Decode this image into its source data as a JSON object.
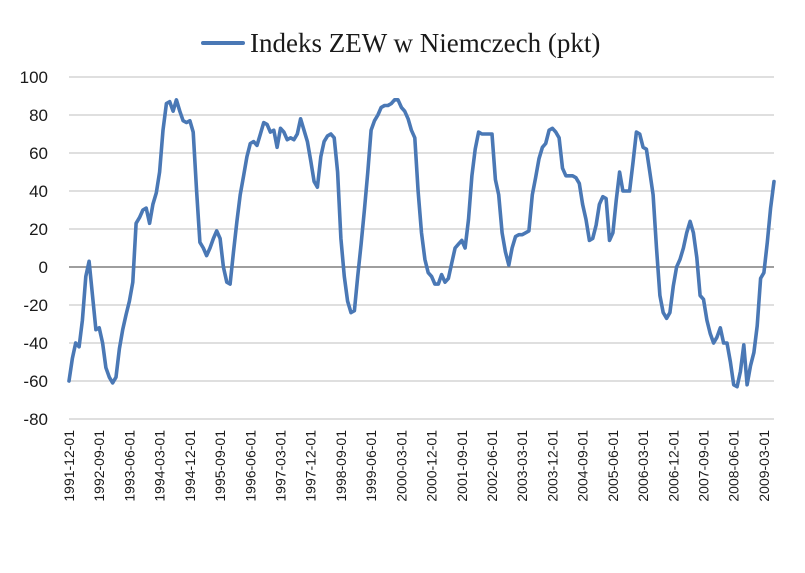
{
  "chart_data": {
    "type": "line",
    "title": "",
    "xlabel": "",
    "ylabel": "",
    "ylim": [
      -80,
      100
    ],
    "yticks": [
      100,
      80,
      60,
      40,
      20,
      0,
      -20,
      -40,
      -60,
      -80
    ],
    "grid": true,
    "legend": {
      "placement": "top-center"
    },
    "x_ticks": [
      "1991-12-01",
      "1992-09-01",
      "1993-06-01",
      "1994-03-01",
      "1994-12-01",
      "1995-09-01",
      "1996-06-01",
      "1997-03-01",
      "1997-12-01",
      "1998-09-01",
      "1999-06-01",
      "2000-03-01",
      "2000-12-01",
      "2001-09-01",
      "2002-06-01",
      "2003-03-01",
      "2003-12-01",
      "2004-09-01",
      "2005-06-01",
      "2006-03-01",
      "2006-12-01",
      "2007-09-01",
      "2008-06-01",
      "2009-03-01"
    ],
    "colors": {
      "series": "#4a78b5",
      "grid": "#bfbfbf",
      "zero_line": "#7f7f7f"
    },
    "series": [
      {
        "name": "Indeks ZEW w Niemczech (pkt)",
        "points": [
          [
            "1991-12-01",
            -60
          ],
          [
            "1992-01-01",
            -48
          ],
          [
            "1992-02-01",
            -40
          ],
          [
            "1992-03-01",
            -42
          ],
          [
            "1992-04-01",
            -28
          ],
          [
            "1992-05-01",
            -5
          ],
          [
            "1992-06-01",
            3
          ],
          [
            "1992-07-01",
            -15
          ],
          [
            "1992-08-01",
            -33
          ],
          [
            "1992-09-01",
            -32
          ],
          [
            "1992-10-01",
            -40
          ],
          [
            "1992-11-01",
            -53
          ],
          [
            "1992-12-01",
            -58
          ],
          [
            "1993-01-01",
            -61
          ],
          [
            "1993-02-01",
            -58
          ],
          [
            "1993-03-01",
            -43
          ],
          [
            "1993-04-01",
            -33
          ],
          [
            "1993-05-01",
            -25
          ],
          [
            "1993-06-01",
            -18
          ],
          [
            "1993-07-01",
            -8
          ],
          [
            "1993-08-01",
            23
          ],
          [
            "1993-09-01",
            26
          ],
          [
            "1993-10-01",
            30
          ],
          [
            "1993-11-01",
            31
          ],
          [
            "1993-12-01",
            23
          ],
          [
            "1994-01-01",
            33
          ],
          [
            "1994-02-01",
            39
          ],
          [
            "1994-03-01",
            50
          ],
          [
            "1994-04-01",
            72
          ],
          [
            "1994-05-01",
            86
          ],
          [
            "1994-06-01",
            87
          ],
          [
            "1994-07-01",
            82
          ],
          [
            "1994-08-01",
            88
          ],
          [
            "1994-09-01",
            82
          ],
          [
            "1994-10-01",
            77
          ],
          [
            "1994-11-01",
            76
          ],
          [
            "1994-12-01",
            77
          ],
          [
            "1995-01-01",
            71
          ],
          [
            "1995-02-01",
            40
          ],
          [
            "1995-03-01",
            13
          ],
          [
            "1995-04-01",
            10
          ],
          [
            "1995-05-01",
            6
          ],
          [
            "1995-06-01",
            10
          ],
          [
            "1995-07-01",
            15
          ],
          [
            "1995-08-01",
            19
          ],
          [
            "1995-09-01",
            15
          ],
          [
            "1995-10-01",
            0
          ],
          [
            "1995-11-01",
            -8
          ],
          [
            "1995-12-01",
            -9
          ],
          [
            "1996-01-01",
            8
          ],
          [
            "1996-02-01",
            24
          ],
          [
            "1996-03-01",
            38
          ],
          [
            "1996-04-01",
            48
          ],
          [
            "1996-05-01",
            58
          ],
          [
            "1996-06-01",
            65
          ],
          [
            "1996-07-01",
            66
          ],
          [
            "1996-08-01",
            64
          ],
          [
            "1996-09-01",
            70
          ],
          [
            "1996-10-01",
            76
          ],
          [
            "1996-11-01",
            75
          ],
          [
            "1996-12-01",
            71
          ],
          [
            "1997-01-01",
            72
          ],
          [
            "1997-02-01",
            63
          ],
          [
            "1997-03-01",
            73
          ],
          [
            "1997-04-01",
            71
          ],
          [
            "1997-05-01",
            67
          ],
          [
            "1997-06-01",
            68
          ],
          [
            "1997-07-01",
            67
          ],
          [
            "1997-08-01",
            70
          ],
          [
            "1997-09-01",
            78
          ],
          [
            "1997-10-01",
            72
          ],
          [
            "1997-11-01",
            66
          ],
          [
            "1997-12-01",
            56
          ],
          [
            "1998-01-01",
            45
          ],
          [
            "1998-02-01",
            42
          ],
          [
            "1998-03-01",
            58
          ],
          [
            "1998-04-01",
            66
          ],
          [
            "1998-05-01",
            69
          ],
          [
            "1998-06-01",
            70
          ],
          [
            "1998-07-01",
            68
          ],
          [
            "1998-08-01",
            50
          ],
          [
            "1998-09-01",
            15
          ],
          [
            "1998-10-01",
            -5
          ],
          [
            "1998-11-01",
            -18
          ],
          [
            "1998-12-01",
            -24
          ],
          [
            "1999-01-01",
            -23
          ],
          [
            "1999-02-01",
            -5
          ],
          [
            "1999-03-01",
            12
          ],
          [
            "1999-04-01",
            30
          ],
          [
            "1999-05-01",
            50
          ],
          [
            "1999-06-01",
            72
          ],
          [
            "1999-07-01",
            77
          ],
          [
            "1999-08-01",
            80
          ],
          [
            "1999-09-01",
            84
          ],
          [
            "1999-10-01",
            85
          ],
          [
            "1999-11-01",
            85
          ],
          [
            "1999-12-01",
            86
          ],
          [
            "2000-01-01",
            88
          ],
          [
            "2000-02-01",
            88
          ],
          [
            "2000-03-01",
            84
          ],
          [
            "2000-04-01",
            82
          ],
          [
            "2000-05-01",
            78
          ],
          [
            "2000-06-01",
            72
          ],
          [
            "2000-07-01",
            68
          ],
          [
            "2000-08-01",
            40
          ],
          [
            "2000-09-01",
            18
          ],
          [
            "2000-10-01",
            4
          ],
          [
            "2000-11-01",
            -3
          ],
          [
            "2000-12-01",
            -5
          ],
          [
            "2001-01-01",
            -9
          ],
          [
            "2001-02-01",
            -9
          ],
          [
            "2001-03-01",
            -4
          ],
          [
            "2001-04-01",
            -8
          ],
          [
            "2001-05-01",
            -6
          ],
          [
            "2001-06-01",
            2
          ],
          [
            "2001-07-01",
            10
          ],
          [
            "2001-08-01",
            12
          ],
          [
            "2001-09-01",
            14
          ],
          [
            "2001-10-01",
            10
          ],
          [
            "2001-11-01",
            25
          ],
          [
            "2001-12-01",
            48
          ],
          [
            "2002-01-01",
            62
          ],
          [
            "2002-02-01",
            71
          ],
          [
            "2002-03-01",
            70
          ],
          [
            "2002-04-01",
            70
          ],
          [
            "2002-05-01",
            70
          ],
          [
            "2002-06-01",
            70
          ],
          [
            "2002-07-01",
            46
          ],
          [
            "2002-08-01",
            38
          ],
          [
            "2002-09-01",
            18
          ],
          [
            "2002-10-01",
            8
          ],
          [
            "2002-11-01",
            1
          ],
          [
            "2002-12-01",
            10
          ],
          [
            "2003-01-01",
            16
          ],
          [
            "2003-02-01",
            17
          ],
          [
            "2003-03-01",
            17
          ],
          [
            "2003-04-01",
            18
          ],
          [
            "2003-05-01",
            19
          ],
          [
            "2003-06-01",
            38
          ],
          [
            "2003-07-01",
            47
          ],
          [
            "2003-08-01",
            57
          ],
          [
            "2003-09-01",
            63
          ],
          [
            "2003-10-01",
            65
          ],
          [
            "2003-11-01",
            72
          ],
          [
            "2003-12-01",
            73
          ],
          [
            "2004-01-01",
            71
          ],
          [
            "2004-02-01",
            68
          ],
          [
            "2004-03-01",
            52
          ],
          [
            "2004-04-01",
            48
          ],
          [
            "2004-05-01",
            48
          ],
          [
            "2004-06-01",
            48
          ],
          [
            "2004-07-01",
            47
          ],
          [
            "2004-08-01",
            44
          ],
          [
            "2004-09-01",
            33
          ],
          [
            "2004-10-01",
            25
          ],
          [
            "2004-11-01",
            14
          ],
          [
            "2004-12-01",
            15
          ],
          [
            "2005-01-01",
            22
          ],
          [
            "2005-02-01",
            33
          ],
          [
            "2005-03-01",
            37
          ],
          [
            "2005-04-01",
            36
          ],
          [
            "2005-05-01",
            14
          ],
          [
            "2005-06-01",
            18
          ],
          [
            "2005-07-01",
            35
          ],
          [
            "2005-08-01",
            50
          ],
          [
            "2005-09-01",
            40
          ],
          [
            "2005-10-01",
            40
          ],
          [
            "2005-11-01",
            40
          ],
          [
            "2005-12-01",
            55
          ],
          [
            "2006-01-01",
            71
          ],
          [
            "2006-02-01",
            70
          ],
          [
            "2006-03-01",
            63
          ],
          [
            "2006-04-01",
            62
          ],
          [
            "2006-05-01",
            50
          ],
          [
            "2006-06-01",
            38
          ],
          [
            "2006-07-01",
            10
          ],
          [
            "2006-08-01",
            -15
          ],
          [
            "2006-09-01",
            -24
          ],
          [
            "2006-10-01",
            -27
          ],
          [
            "2006-11-01",
            -24
          ],
          [
            "2006-12-01",
            -10
          ],
          [
            "2007-01-01",
            0
          ],
          [
            "2007-02-01",
            4
          ],
          [
            "2007-03-01",
            10
          ],
          [
            "2007-04-01",
            18
          ],
          [
            "2007-05-01",
            24
          ],
          [
            "2007-06-01",
            18
          ],
          [
            "2007-07-01",
            5
          ],
          [
            "2007-08-01",
            -15
          ],
          [
            "2007-09-01",
            -17
          ],
          [
            "2007-10-01",
            -28
          ],
          [
            "2007-11-01",
            -35
          ],
          [
            "2007-12-01",
            -40
          ],
          [
            "2008-01-01",
            -37
          ],
          [
            "2008-02-01",
            -32
          ],
          [
            "2008-03-01",
            -40
          ],
          [
            "2008-04-01",
            -40
          ],
          [
            "2008-05-01",
            -50
          ],
          [
            "2008-06-01",
            -62
          ],
          [
            "2008-07-01",
            -63
          ],
          [
            "2008-08-01",
            -55
          ],
          [
            "2008-09-01",
            -41
          ],
          [
            "2008-10-01",
            -62
          ],
          [
            "2008-11-01",
            -52
          ],
          [
            "2008-12-01",
            -45
          ],
          [
            "2009-01-01",
            -31
          ],
          [
            "2009-02-01",
            -6
          ],
          [
            "2009-03-01",
            -3
          ],
          [
            "2009-04-01",
            13
          ],
          [
            "2009-05-01",
            31
          ],
          [
            "2009-06-01",
            45
          ]
        ]
      }
    ]
  }
}
